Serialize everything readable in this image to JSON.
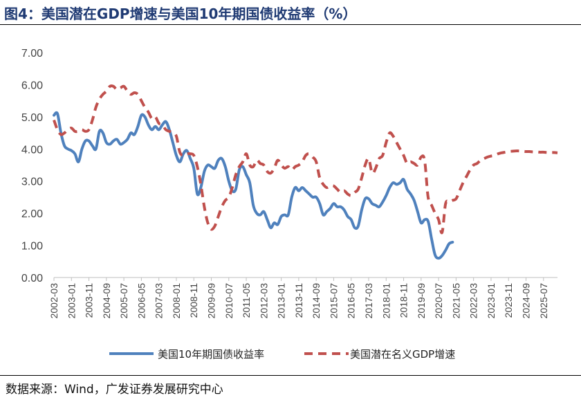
{
  "title": "图4：美国潜在GDP增速与美国10年期国债收益率（%）",
  "source": "数据来源：Wind，广发证券发展研究中心",
  "colors": {
    "title": "#1f3a73",
    "series1": "#4f81bd",
    "series2": "#c0504d"
  },
  "chart_data": {
    "type": "line",
    "title": "图4：美国潜在GDP增速与美国10年期国债收益率（%）",
    "ylim": [
      0,
      7
    ],
    "yticks": [
      "0.00",
      "1.00",
      "2.00",
      "3.00",
      "4.00",
      "5.00",
      "6.00",
      "7.00"
    ],
    "xlim": [
      "2002-03",
      "2026-03"
    ],
    "xticks": [
      "2002-03",
      "2003-01",
      "2003-11",
      "2004-09",
      "2005-07",
      "2006-05",
      "2007-03",
      "2008-01",
      "2008-11",
      "2009-09",
      "2010-07",
      "2011-05",
      "2012-03",
      "2013-01",
      "2013-11",
      "2014-09",
      "2015-07",
      "2016-05",
      "2017-03",
      "2018-01",
      "2018-11",
      "2019-09",
      "2020-07",
      "2021-05",
      "2022-03",
      "2023-01",
      "2023-11",
      "2024-09",
      "2025-07"
    ],
    "grid": false,
    "legend": "bottom",
    "series": [
      {
        "name": "美国10年期国债收益率",
        "style": "solid",
        "points": [
          [
            "2002-03",
            5.05
          ],
          [
            "2002-05",
            5.1
          ],
          [
            "2002-07",
            4.5
          ],
          [
            "2002-09",
            4.1
          ],
          [
            "2002-11",
            4.0
          ],
          [
            "2003-01",
            3.95
          ],
          [
            "2003-03",
            3.85
          ],
          [
            "2003-05",
            3.6
          ],
          [
            "2003-07",
            4.0
          ],
          [
            "2003-09",
            4.25
          ],
          [
            "2003-11",
            4.25
          ],
          [
            "2004-01",
            4.1
          ],
          [
            "2004-03",
            4.0
          ],
          [
            "2004-05",
            4.55
          ],
          [
            "2004-07",
            4.5
          ],
          [
            "2004-09",
            4.2
          ],
          [
            "2004-11",
            4.15
          ],
          [
            "2005-01",
            4.25
          ],
          [
            "2005-03",
            4.3
          ],
          [
            "2005-05",
            4.15
          ],
          [
            "2005-07",
            4.2
          ],
          [
            "2005-09",
            4.3
          ],
          [
            "2005-11",
            4.5
          ],
          [
            "2006-01",
            4.45
          ],
          [
            "2006-03",
            4.7
          ],
          [
            "2006-05",
            5.05
          ],
          [
            "2006-07",
            5.0
          ],
          [
            "2006-09",
            4.75
          ],
          [
            "2006-11",
            4.6
          ],
          [
            "2007-01",
            4.7
          ],
          [
            "2007-03",
            4.6
          ],
          [
            "2007-05",
            4.75
          ],
          [
            "2007-07",
            4.85
          ],
          [
            "2007-09",
            4.6
          ],
          [
            "2007-11",
            4.2
          ],
          [
            "2008-01",
            3.8
          ],
          [
            "2008-03",
            3.6
          ],
          [
            "2008-05",
            3.85
          ],
          [
            "2008-07",
            3.95
          ],
          [
            "2008-09",
            3.7
          ],
          [
            "2008-11",
            3.4
          ],
          [
            "2009-01",
            2.6
          ],
          [
            "2009-03",
            2.8
          ],
          [
            "2009-05",
            3.3
          ],
          [
            "2009-07",
            3.5
          ],
          [
            "2009-09",
            3.45
          ],
          [
            "2009-11",
            3.4
          ],
          [
            "2010-01",
            3.65
          ],
          [
            "2010-03",
            3.7
          ],
          [
            "2010-05",
            3.45
          ],
          [
            "2010-07",
            3.0
          ],
          [
            "2010-09",
            2.7
          ],
          [
            "2010-11",
            2.75
          ],
          [
            "2011-01",
            3.35
          ],
          [
            "2011-03",
            3.45
          ],
          [
            "2011-05",
            3.2
          ],
          [
            "2011-07",
            2.95
          ],
          [
            "2011-09",
            2.25
          ],
          [
            "2011-11",
            2.0
          ],
          [
            "2012-01",
            1.95
          ],
          [
            "2012-03",
            2.05
          ],
          [
            "2012-05",
            1.8
          ],
          [
            "2012-07",
            1.55
          ],
          [
            "2012-09",
            1.7
          ],
          [
            "2012-11",
            1.65
          ],
          [
            "2013-01",
            1.9
          ],
          [
            "2013-03",
            1.95
          ],
          [
            "2013-05",
            1.95
          ],
          [
            "2013-07",
            2.5
          ],
          [
            "2013-09",
            2.8
          ],
          [
            "2013-11",
            2.7
          ],
          [
            "2014-01",
            2.8
          ],
          [
            "2014-03",
            2.7
          ],
          [
            "2014-05",
            2.6
          ],
          [
            "2014-07",
            2.5
          ],
          [
            "2014-09",
            2.5
          ],
          [
            "2014-11",
            2.3
          ],
          [
            "2015-01",
            1.95
          ],
          [
            "2015-03",
            2.05
          ],
          [
            "2015-05",
            2.15
          ],
          [
            "2015-07",
            2.3
          ],
          [
            "2015-09",
            2.2
          ],
          [
            "2015-11",
            2.2
          ],
          [
            "2016-01",
            2.1
          ],
          [
            "2016-03",
            1.9
          ],
          [
            "2016-05",
            1.8
          ],
          [
            "2016-07",
            1.55
          ],
          [
            "2016-09",
            1.6
          ],
          [
            "2016-11",
            2.1
          ],
          [
            "2017-01",
            2.45
          ],
          [
            "2017-03",
            2.45
          ],
          [
            "2017-05",
            2.3
          ],
          [
            "2017-07",
            2.25
          ],
          [
            "2017-09",
            2.2
          ],
          [
            "2017-11",
            2.35
          ],
          [
            "2018-01",
            2.55
          ],
          [
            "2018-03",
            2.8
          ],
          [
            "2018-05",
            2.95
          ],
          [
            "2018-07",
            2.9
          ],
          [
            "2018-09",
            2.95
          ],
          [
            "2018-11",
            3.05
          ],
          [
            "2019-01",
            2.75
          ],
          [
            "2019-03",
            2.6
          ],
          [
            "2019-05",
            2.4
          ],
          [
            "2019-07",
            2.05
          ],
          [
            "2019-09",
            1.7
          ],
          [
            "2019-11",
            1.8
          ],
          [
            "2020-01",
            1.75
          ],
          [
            "2020-03",
            1.2
          ],
          [
            "2020-05",
            0.7
          ],
          [
            "2020-07",
            0.6
          ],
          [
            "2020-09",
            0.68
          ],
          [
            "2020-11",
            0.85
          ],
          [
            "2021-01",
            1.05
          ],
          [
            "2021-03",
            1.1
          ]
        ]
      },
      {
        "name": "美国潜在名义GDP增速",
        "style": "dashed",
        "points": [
          [
            "2002-03",
            4.9
          ],
          [
            "2002-05",
            4.6
          ],
          [
            "2002-07",
            4.45
          ],
          [
            "2002-09",
            4.5
          ],
          [
            "2002-11",
            4.6
          ],
          [
            "2003-01",
            4.65
          ],
          [
            "2003-03",
            4.55
          ],
          [
            "2003-05",
            4.55
          ],
          [
            "2003-07",
            4.6
          ],
          [
            "2003-09",
            4.55
          ],
          [
            "2003-11",
            4.6
          ],
          [
            "2004-01",
            4.9
          ],
          [
            "2004-03",
            5.3
          ],
          [
            "2004-05",
            5.55
          ],
          [
            "2004-07",
            5.7
          ],
          [
            "2004-09",
            5.8
          ],
          [
            "2004-11",
            5.95
          ],
          [
            "2005-01",
            5.95
          ],
          [
            "2005-03",
            5.85
          ],
          [
            "2005-05",
            5.9
          ],
          [
            "2005-07",
            5.95
          ],
          [
            "2005-09",
            5.8
          ],
          [
            "2005-11",
            5.7
          ],
          [
            "2006-01",
            5.75
          ],
          [
            "2006-03",
            5.7
          ],
          [
            "2006-05",
            5.5
          ],
          [
            "2006-07",
            5.3
          ],
          [
            "2006-09",
            5.15
          ],
          [
            "2006-11",
            4.95
          ],
          [
            "2007-01",
            5.0
          ],
          [
            "2007-03",
            4.8
          ],
          [
            "2007-05",
            4.75
          ],
          [
            "2007-07",
            4.6
          ],
          [
            "2007-09",
            4.55
          ],
          [
            "2007-11",
            4.5
          ],
          [
            "2008-01",
            4.4
          ],
          [
            "2008-03",
            3.9
          ],
          [
            "2008-05",
            3.8
          ],
          [
            "2008-07",
            3.85
          ],
          [
            "2008-09",
            3.85
          ],
          [
            "2008-11",
            3.8
          ],
          [
            "2009-01",
            3.45
          ],
          [
            "2009-03",
            2.9
          ],
          [
            "2009-05",
            2.2
          ],
          [
            "2009-07",
            1.7
          ],
          [
            "2009-09",
            1.5
          ],
          [
            "2009-11",
            1.6
          ],
          [
            "2010-01",
            1.9
          ],
          [
            "2010-03",
            2.2
          ],
          [
            "2010-05",
            2.4
          ],
          [
            "2010-07",
            2.5
          ],
          [
            "2010-09",
            2.8
          ],
          [
            "2010-11",
            3.2
          ],
          [
            "2011-01",
            3.45
          ],
          [
            "2011-03",
            3.6
          ],
          [
            "2011-05",
            3.85
          ],
          [
            "2011-07",
            3.5
          ],
          [
            "2011-09",
            3.45
          ],
          [
            "2011-11",
            3.65
          ],
          [
            "2012-01",
            3.55
          ],
          [
            "2012-03",
            3.5
          ],
          [
            "2012-05",
            3.3
          ],
          [
            "2012-07",
            3.25
          ],
          [
            "2012-09",
            3.4
          ],
          [
            "2012-11",
            3.65
          ],
          [
            "2013-01",
            3.5
          ],
          [
            "2013-03",
            3.4
          ],
          [
            "2013-05",
            3.45
          ],
          [
            "2013-07",
            3.35
          ],
          [
            "2013-09",
            3.45
          ],
          [
            "2013-11",
            3.5
          ],
          [
            "2014-01",
            3.6
          ],
          [
            "2014-03",
            3.8
          ],
          [
            "2014-05",
            3.85
          ],
          [
            "2014-07",
            3.75
          ],
          [
            "2014-09",
            3.6
          ],
          [
            "2014-11",
            3.1
          ],
          [
            "2015-01",
            2.9
          ],
          [
            "2015-03",
            2.8
          ],
          [
            "2015-05",
            2.85
          ],
          [
            "2015-07",
            2.85
          ],
          [
            "2015-09",
            2.75
          ],
          [
            "2015-11",
            2.65
          ],
          [
            "2016-01",
            2.7
          ],
          [
            "2016-03",
            2.6
          ],
          [
            "2016-05",
            2.55
          ],
          [
            "2016-07",
            2.65
          ],
          [
            "2016-09",
            2.75
          ],
          [
            "2016-11",
            3.1
          ],
          [
            "2017-01",
            3.5
          ],
          [
            "2017-03",
            3.7
          ],
          [
            "2017-05",
            3.25
          ],
          [
            "2017-07",
            3.4
          ],
          [
            "2017-09",
            3.7
          ],
          [
            "2017-11",
            3.8
          ],
          [
            "2018-01",
            4.2
          ],
          [
            "2018-03",
            4.5
          ],
          [
            "2018-05",
            4.4
          ],
          [
            "2018-07",
            4.2
          ],
          [
            "2018-09",
            4.0
          ],
          [
            "2018-11",
            3.8
          ],
          [
            "2019-01",
            3.55
          ],
          [
            "2019-03",
            3.6
          ],
          [
            "2019-05",
            3.55
          ],
          [
            "2019-07",
            3.5
          ],
          [
            "2019-09",
            3.75
          ],
          [
            "2019-11",
            3.65
          ],
          [
            "2020-01",
            2.5
          ],
          [
            "2020-03",
            2.25
          ],
          [
            "2020-05",
            2.0
          ],
          [
            "2020-07",
            1.8
          ],
          [
            "2020-09",
            1.4
          ],
          [
            "2020-11",
            2.3
          ],
          [
            "2021-01",
            2.35
          ],
          [
            "2021-03",
            2.4
          ],
          [
            "2021-05",
            2.45
          ],
          [
            "2021-07",
            2.7
          ],
          [
            "2021-09",
            2.95
          ],
          [
            "2021-11",
            3.15
          ],
          [
            "2022-01",
            3.35
          ],
          [
            "2022-03",
            3.5
          ],
          [
            "2022-05",
            3.55
          ],
          [
            "2022-07",
            3.65
          ],
          [
            "2022-09",
            3.7
          ],
          [
            "2022-11",
            3.75
          ],
          [
            "2023-01",
            3.78
          ],
          [
            "2023-03",
            3.8
          ],
          [
            "2023-05",
            3.85
          ],
          [
            "2023-07",
            3.88
          ],
          [
            "2023-09",
            3.9
          ],
          [
            "2023-11",
            3.92
          ],
          [
            "2024-01",
            3.93
          ],
          [
            "2024-03",
            3.94
          ],
          [
            "2024-05",
            3.94
          ],
          [
            "2024-07",
            3.93
          ],
          [
            "2024-09",
            3.92
          ],
          [
            "2024-11",
            3.92
          ],
          [
            "2025-01",
            3.91
          ],
          [
            "2025-03",
            3.91
          ],
          [
            "2025-05",
            3.9
          ],
          [
            "2025-07",
            3.9
          ],
          [
            "2025-09",
            3.89
          ],
          [
            "2025-11",
            3.89
          ],
          [
            "2026-01",
            3.89
          ],
          [
            "2026-03",
            3.88
          ]
        ]
      }
    ]
  }
}
